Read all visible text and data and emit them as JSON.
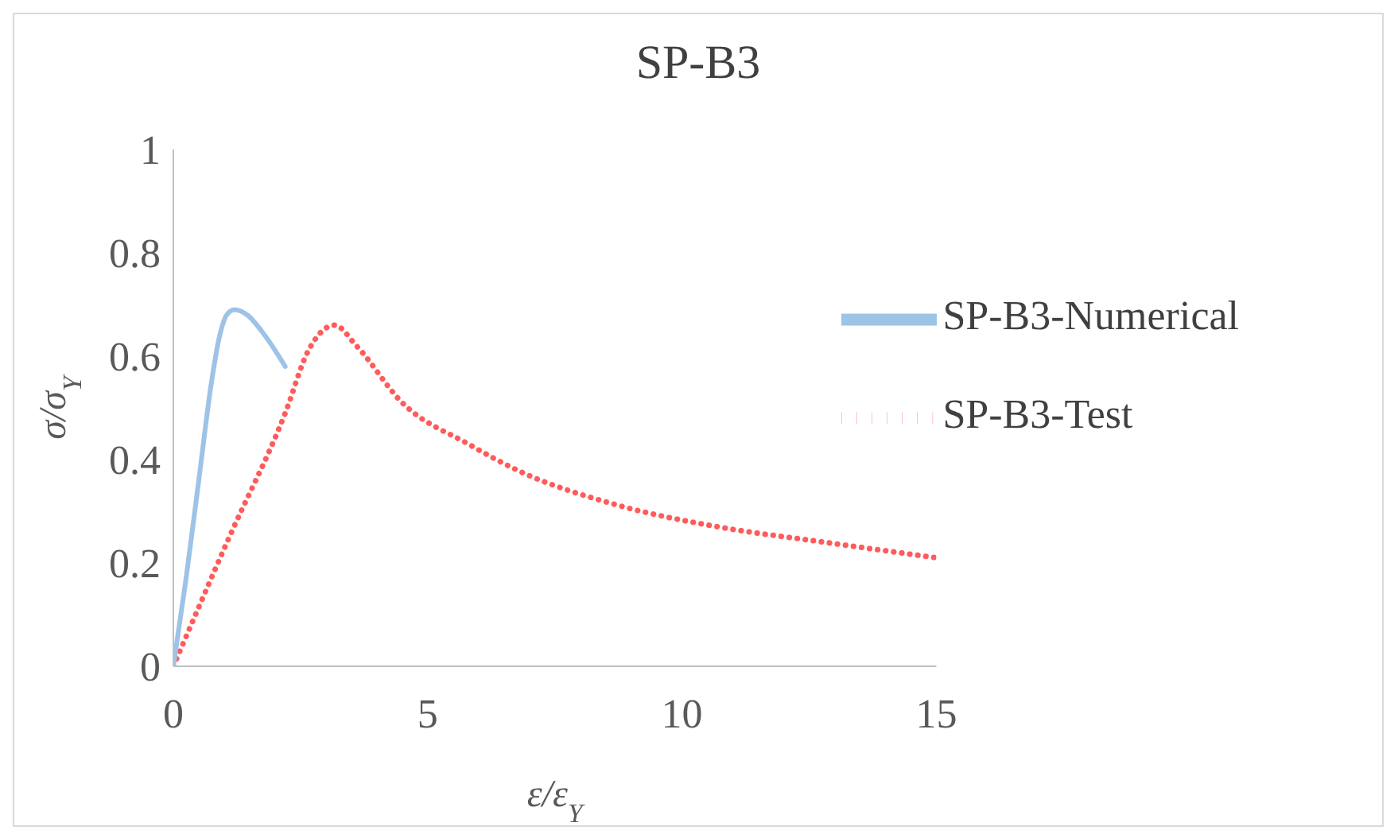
{
  "chart_data": {
    "type": "line",
    "title": "SP-B3",
    "xlabel": "ε/ε$_{Y}$",
    "ylabel": "σ/σ$_{Y}$",
    "xlim": [
      0,
      15
    ],
    "xticks": [
      0,
      5,
      10,
      15
    ],
    "ylim": [
      0,
      1
    ],
    "yticks": [
      0,
      0.2,
      0.4,
      0.6,
      0.8,
      1
    ],
    "grid": false,
    "legend": "right",
    "marker": "none",
    "series": [
      {
        "name": "SP-B3-Test",
        "color": "#ff5b5b",
        "line_style": "dotted",
        "x": [
          0,
          1.1,
          2.2,
          2.65,
          3.17,
          3.6,
          4.5,
          5.8,
          6.75,
          8.8,
          10.7,
          12.8,
          15
        ],
        "values": [
          0,
          0.25,
          0.49,
          0.61,
          0.66,
          0.62,
          0.51,
          0.43,
          0.38,
          0.31,
          0.27,
          0.24,
          0.21
        ]
      },
      {
        "name": "SP-B3-Numerical",
        "color": "#9dc3e6",
        "line_style": "solid",
        "x": [
          0,
          0.25,
          0.5,
          0.75,
          0.9,
          1.05,
          1.2,
          1.45,
          1.8,
          2.2
        ],
        "values": [
          0,
          0.17,
          0.36,
          0.55,
          0.635,
          0.68,
          0.69,
          0.68,
          0.64,
          0.58
        ]
      }
    ]
  }
}
